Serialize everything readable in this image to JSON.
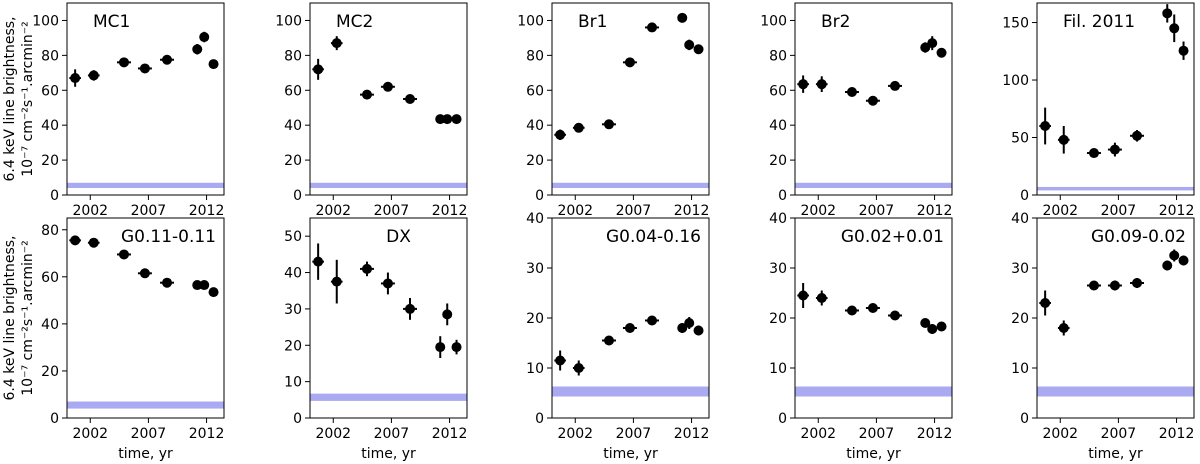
{
  "figure": {
    "y_label_line1": "6.4 keV line brightness,",
    "y_label_line2": "10⁻⁷ cm⁻²s⁻¹.arcmin⁻²",
    "x_label": "time, yr"
  },
  "colors": {
    "marker": "#000000",
    "band": "#aaaaf2"
  },
  "chart_data": [
    {
      "type": "scatter",
      "title": "MC1",
      "title_align": "left",
      "xlabel": "",
      "ylabel": "6.4 keV line brightness",
      "xlim": [
        2000,
        2013.5
      ],
      "ylim": [
        0,
        110
      ],
      "xticks": [
        2002,
        2007,
        2012
      ],
      "yticks": [
        0,
        20,
        40,
        60,
        80,
        100
      ],
      "band": [
        4,
        7
      ],
      "points": [
        {
          "x": 2000.7,
          "y": 67,
          "xerr": 0.5,
          "yerr": 5
        },
        {
          "x": 2002.3,
          "y": 68.5,
          "xerr": 0.5,
          "yerr": 3
        },
        {
          "x": 2004.9,
          "y": 76,
          "xerr": 0.6,
          "yerr": 1.5
        },
        {
          "x": 2006.7,
          "y": 72.5,
          "xerr": 0.6,
          "yerr": 1.5
        },
        {
          "x": 2008.6,
          "y": 77.5,
          "xerr": 0.6,
          "yerr": 1.5
        },
        {
          "x": 2011.2,
          "y": 83.5,
          "xerr": 0.3,
          "yerr": 3
        },
        {
          "x": 2011.8,
          "y": 90.5,
          "xerr": 0.2,
          "yerr": 3
        },
        {
          "x": 2012.6,
          "y": 75,
          "xerr": 0.3,
          "yerr": 1.5
        }
      ]
    },
    {
      "type": "scatter",
      "title": "MC2",
      "title_align": "left",
      "xlabel": "",
      "ylabel": "",
      "xlim": [
        2000,
        2013.5
      ],
      "ylim": [
        0,
        110
      ],
      "xticks": [
        2002,
        2007,
        2012
      ],
      "yticks": [
        0,
        20,
        40,
        60,
        80,
        100
      ],
      "band": [
        4,
        7
      ],
      "points": [
        {
          "x": 2000.7,
          "y": 72,
          "xerr": 0.5,
          "yerr": 6
        },
        {
          "x": 2002.3,
          "y": 87,
          "xerr": 0.5,
          "yerr": 4
        },
        {
          "x": 2004.9,
          "y": 57.5,
          "xerr": 0.6,
          "yerr": 1.5
        },
        {
          "x": 2006.7,
          "y": 62,
          "xerr": 0.6,
          "yerr": 1.5
        },
        {
          "x": 2008.6,
          "y": 55,
          "xerr": 0.6,
          "yerr": 1.5
        },
        {
          "x": 2011.2,
          "y": 43.5,
          "xerr": 0.3,
          "yerr": 1
        },
        {
          "x": 2011.8,
          "y": 43.5,
          "xerr": 0.2,
          "yerr": 1
        },
        {
          "x": 2012.6,
          "y": 43.5,
          "xerr": 0.3,
          "yerr": 1
        }
      ]
    },
    {
      "type": "scatter",
      "title": "Br1",
      "title_align": "left",
      "xlabel": "",
      "ylabel": "",
      "xlim": [
        2000,
        2013.5
      ],
      "ylim": [
        0,
        110
      ],
      "xticks": [
        2002,
        2007,
        2012
      ],
      "yticks": [
        0,
        20,
        40,
        60,
        80,
        100
      ],
      "band": [
        4,
        7
      ],
      "points": [
        {
          "x": 2000.7,
          "y": 34.5,
          "xerr": 0.5,
          "yerr": 3
        },
        {
          "x": 2002.3,
          "y": 38.5,
          "xerr": 0.5,
          "yerr": 1.5
        },
        {
          "x": 2004.9,
          "y": 40.5,
          "xerr": 0.6,
          "yerr": 1.5
        },
        {
          "x": 2006.7,
          "y": 76,
          "xerr": 0.6,
          "yerr": 1.5
        },
        {
          "x": 2008.6,
          "y": 96,
          "xerr": 0.6,
          "yerr": 1.5
        },
        {
          "x": 2011.2,
          "y": 101.5,
          "xerr": 0.3,
          "yerr": 1.5
        },
        {
          "x": 2011.8,
          "y": 86,
          "xerr": 0.2,
          "yerr": 3
        },
        {
          "x": 2012.6,
          "y": 83.5,
          "xerr": 0.3,
          "yerr": 1.5
        }
      ]
    },
    {
      "type": "scatter",
      "title": "Br2",
      "title_align": "left",
      "xlabel": "",
      "ylabel": "",
      "xlim": [
        2000,
        2013.5
      ],
      "ylim": [
        0,
        110
      ],
      "xticks": [
        2002,
        2007,
        2012
      ],
      "yticks": [
        0,
        20,
        40,
        60,
        80,
        100
      ],
      "band": [
        4,
        7
      ],
      "points": [
        {
          "x": 2000.7,
          "y": 63.5,
          "xerr": 0.5,
          "yerr": 5
        },
        {
          "x": 2002.3,
          "y": 63.5,
          "xerr": 0.5,
          "yerr": 4.5
        },
        {
          "x": 2004.9,
          "y": 59,
          "xerr": 0.6,
          "yerr": 1.5
        },
        {
          "x": 2006.7,
          "y": 54,
          "xerr": 0.6,
          "yerr": 2
        },
        {
          "x": 2008.6,
          "y": 62.5,
          "xerr": 0.6,
          "yerr": 1.5
        },
        {
          "x": 2011.2,
          "y": 84.5,
          "xerr": 0.3,
          "yerr": 3
        },
        {
          "x": 2011.8,
          "y": 87,
          "xerr": 0.2,
          "yerr": 4
        },
        {
          "x": 2012.6,
          "y": 81.5,
          "xerr": 0.3,
          "yerr": 1.5
        }
      ]
    },
    {
      "type": "scatter",
      "title": "Fil. 2011",
      "title_align": "left",
      "xlabel": "",
      "ylabel": "",
      "xlim": [
        2000,
        2013.5
      ],
      "ylim": [
        0,
        167
      ],
      "xticks": [
        2002,
        2007,
        2012
      ],
      "yticks": [
        0,
        50,
        100,
        150
      ],
      "band": [
        4,
        7
      ],
      "points": [
        {
          "x": 2000.7,
          "y": 60,
          "xerr": 0.5,
          "yerr": 16
        },
        {
          "x": 2002.3,
          "y": 48,
          "xerr": 0.5,
          "yerr": 12
        },
        {
          "x": 2004.9,
          "y": 36.5,
          "xerr": 0.6,
          "yerr": 4
        },
        {
          "x": 2006.7,
          "y": 39.5,
          "xerr": 0.6,
          "yerr": 6
        },
        {
          "x": 2008.6,
          "y": 51.5,
          "xerr": 0.6,
          "yerr": 5
        },
        {
          "x": 2011.2,
          "y": 158,
          "xerr": 0.3,
          "yerr": 8
        },
        {
          "x": 2011.8,
          "y": 145,
          "xerr": 0.2,
          "yerr": 12
        },
        {
          "x": 2012.6,
          "y": 125.5,
          "xerr": 0.3,
          "yerr": 8
        }
      ]
    },
    {
      "type": "scatter",
      "title": "G0.11-0.11",
      "title_align": "right",
      "xlabel": "time, yr",
      "ylabel": "6.4 keV line brightness",
      "xlim": [
        2000,
        2013.5
      ],
      "ylim": [
        0,
        85
      ],
      "xticks": [
        2002,
        2007,
        2012
      ],
      "yticks": [
        0,
        20,
        40,
        60,
        80
      ],
      "band": [
        4,
        7
      ],
      "points": [
        {
          "x": 2000.7,
          "y": 75.5,
          "xerr": 0.5,
          "yerr": 1.5
        },
        {
          "x": 2002.3,
          "y": 74.5,
          "xerr": 0.5,
          "yerr": 1
        },
        {
          "x": 2004.9,
          "y": 69.5,
          "xerr": 0.6,
          "yerr": 1
        },
        {
          "x": 2006.7,
          "y": 61.5,
          "xerr": 0.6,
          "yerr": 1
        },
        {
          "x": 2008.6,
          "y": 57.5,
          "xerr": 0.6,
          "yerr": 1
        },
        {
          "x": 2011.2,
          "y": 56.5,
          "xerr": 0.3,
          "yerr": 1
        },
        {
          "x": 2011.8,
          "y": 56.5,
          "xerr": 0.2,
          "yerr": 1
        },
        {
          "x": 2012.6,
          "y": 53.5,
          "xerr": 0.3,
          "yerr": 1
        }
      ]
    },
    {
      "type": "scatter",
      "title": "DX",
      "title_align": "center",
      "xlabel": "time, yr",
      "ylabel": "",
      "xlim": [
        2000,
        2013.5
      ],
      "ylim": [
        0,
        55
      ],
      "xticks": [
        2002,
        2007,
        2012
      ],
      "yticks": [
        0,
        10,
        20,
        30,
        40,
        50
      ],
      "band": [
        4.7,
        6.7
      ],
      "points": [
        {
          "x": 2000.7,
          "y": 43,
          "xerr": 0.5,
          "yerr": 5
        },
        {
          "x": 2002.3,
          "y": 37.5,
          "xerr": 0.5,
          "yerr": 6
        },
        {
          "x": 2004.9,
          "y": 41,
          "xerr": 0.6,
          "yerr": 2
        },
        {
          "x": 2006.7,
          "y": 37,
          "xerr": 0.6,
          "yerr": 3
        },
        {
          "x": 2008.6,
          "y": 30,
          "xerr": 0.6,
          "yerr": 3
        },
        {
          "x": 2011.2,
          "y": 19.5,
          "xerr": 0.3,
          "yerr": 3
        },
        {
          "x": 2011.8,
          "y": 28.5,
          "xerr": 0.2,
          "yerr": 3
        },
        {
          "x": 2012.6,
          "y": 19.5,
          "xerr": 0.3,
          "yerr": 2
        }
      ]
    },
    {
      "type": "scatter",
      "title": "G0.04-0.16",
      "title_align": "right",
      "xlabel": "time, yr",
      "ylabel": "",
      "xlim": [
        2000,
        2013.5
      ],
      "ylim": [
        0,
        40
      ],
      "xticks": [
        2002,
        2007,
        2012
      ],
      "yticks": [
        0,
        10,
        20,
        30,
        40
      ],
      "band": [
        4.3,
        6.3
      ],
      "points": [
        {
          "x": 2000.7,
          "y": 11.5,
          "xerr": 0.5,
          "yerr": 2
        },
        {
          "x": 2002.3,
          "y": 10,
          "xerr": 0.5,
          "yerr": 1.5
        },
        {
          "x": 2004.9,
          "y": 15.5,
          "xerr": 0.6,
          "yerr": 0.5
        },
        {
          "x": 2006.7,
          "y": 18,
          "xerr": 0.6,
          "yerr": 0.5
        },
        {
          "x": 2008.6,
          "y": 19.5,
          "xerr": 0.6,
          "yerr": 0.5
        },
        {
          "x": 2011.2,
          "y": 18,
          "xerr": 0.3,
          "yerr": 1
        },
        {
          "x": 2011.8,
          "y": 19,
          "xerr": 0.2,
          "yerr": 1.2
        },
        {
          "x": 2012.6,
          "y": 17.5,
          "xerr": 0.3,
          "yerr": 1
        }
      ]
    },
    {
      "type": "scatter",
      "title": "G0.02+0.01",
      "title_align": "right",
      "xlabel": "time, yr",
      "ylabel": "",
      "xlim": [
        2000,
        2013.5
      ],
      "ylim": [
        0,
        40
      ],
      "xticks": [
        2002,
        2007,
        2012
      ],
      "yticks": [
        0,
        10,
        20,
        30,
        40
      ],
      "band": [
        4.3,
        6.3
      ],
      "points": [
        {
          "x": 2000.7,
          "y": 24.5,
          "xerr": 0.5,
          "yerr": 2.5
        },
        {
          "x": 2002.3,
          "y": 24,
          "xerr": 0.5,
          "yerr": 1.5
        },
        {
          "x": 2004.9,
          "y": 21.5,
          "xerr": 0.6,
          "yerr": 0.5
        },
        {
          "x": 2006.7,
          "y": 22,
          "xerr": 0.6,
          "yerr": 0.5
        },
        {
          "x": 2008.6,
          "y": 20.5,
          "xerr": 0.6,
          "yerr": 0.5
        },
        {
          "x": 2011.2,
          "y": 19,
          "xerr": 0.3,
          "yerr": 0.8
        },
        {
          "x": 2011.8,
          "y": 17.8,
          "xerr": 0.2,
          "yerr": 1
        },
        {
          "x": 2012.6,
          "y": 18.3,
          "xerr": 0.3,
          "yerr": 0.8
        }
      ]
    },
    {
      "type": "scatter",
      "title": "G0.09-0.02",
      "title_align": "right",
      "xlabel": "time, yr",
      "ylabel": "",
      "xlim": [
        2000,
        2013.5
      ],
      "ylim": [
        0,
        40
      ],
      "xticks": [
        2002,
        2007,
        2012
      ],
      "yticks": [
        0,
        10,
        20,
        30,
        40
      ],
      "band": [
        4.3,
        6.3
      ],
      "points": [
        {
          "x": 2000.7,
          "y": 23,
          "xerr": 0.5,
          "yerr": 2.5
        },
        {
          "x": 2002.3,
          "y": 18,
          "xerr": 0.5,
          "yerr": 1.5
        },
        {
          "x": 2004.9,
          "y": 26.5,
          "xerr": 0.6,
          "yerr": 0.5
        },
        {
          "x": 2006.7,
          "y": 26.5,
          "xerr": 0.6,
          "yerr": 1
        },
        {
          "x": 2008.6,
          "y": 27,
          "xerr": 0.6,
          "yerr": 1
        },
        {
          "x": 2011.2,
          "y": 30.5,
          "xerr": 0.3,
          "yerr": 1
        },
        {
          "x": 2011.8,
          "y": 32.5,
          "xerr": 0.2,
          "yerr": 1.2
        },
        {
          "x": 2012.6,
          "y": 31.5,
          "xerr": 0.3,
          "yerr": 1
        }
      ]
    }
  ]
}
